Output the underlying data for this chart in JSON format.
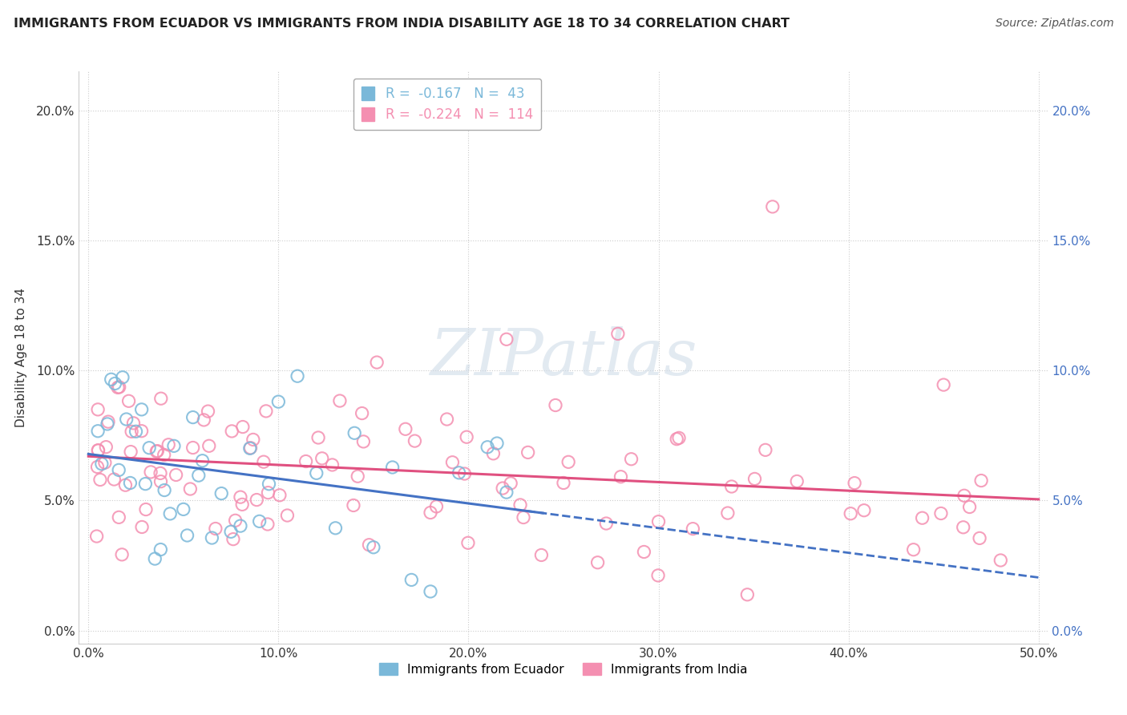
{
  "title": "IMMIGRANTS FROM ECUADOR VS IMMIGRANTS FROM INDIA DISABILITY AGE 18 TO 34 CORRELATION CHART",
  "source": "Source: ZipAtlas.com",
  "ylabel": "Disability Age 18 to 34",
  "xlim": [
    -0.005,
    0.505
  ],
  "ylim": [
    -0.005,
    0.215
  ],
  "yticks": [
    0.0,
    0.05,
    0.1,
    0.15,
    0.2
  ],
  "ytick_labels": [
    "0.0%",
    "5.0%",
    "10.0%",
    "15.0%",
    "20.0%"
  ],
  "xticks": [
    0.0,
    0.1,
    0.2,
    0.3,
    0.4,
    0.5
  ],
  "xtick_labels": [
    "0.0%",
    "10.0%",
    "20.0%",
    "30.0%",
    "40.0%",
    "50.0%"
  ],
  "ecuador_color": "#7ab8d9",
  "india_color": "#f48fb1",
  "ecuador_line_color": "#4472c4",
  "india_line_color": "#e05080",
  "ecuador_R": -0.167,
  "ecuador_N": 43,
  "india_R": -0.224,
  "india_N": 114,
  "legend_label_ecuador": "Immigrants from Ecuador",
  "legend_label_india": "Immigrants from India",
  "watermark": "ZIPatlas",
  "title_fontsize": 11.5,
  "source_fontsize": 10,
  "tick_fontsize": 11,
  "ylabel_fontsize": 11,
  "legend_fontsize": 11
}
